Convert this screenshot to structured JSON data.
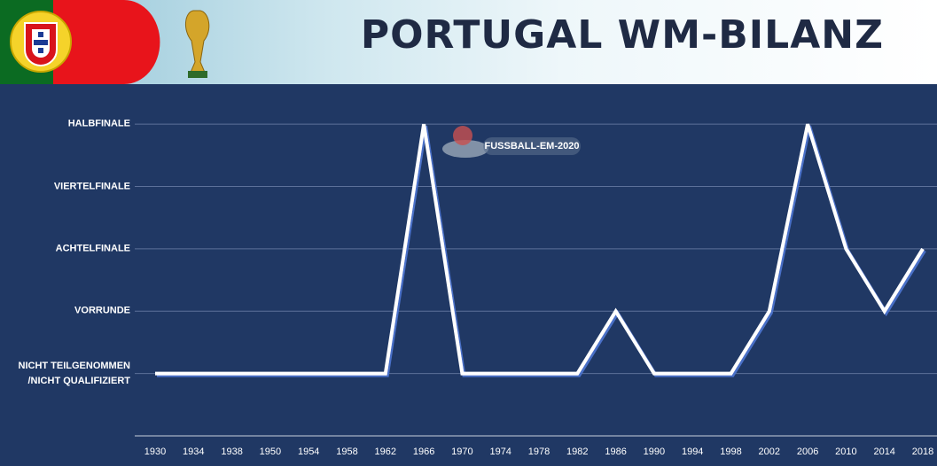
{
  "chart_data": {
    "type": "line",
    "title": "PORTUGAL WM-BILANZ",
    "watermark": "FUSSBALL-EM-2020",
    "categories": [
      "1930",
      "1934",
      "1938",
      "1950",
      "1954",
      "1958",
      "1962",
      "1966",
      "1970",
      "1974",
      "1978",
      "1982",
      "1986",
      "1990",
      "1994",
      "1998",
      "2002",
      "2006",
      "2010",
      "2014",
      "2018"
    ],
    "values": [
      0,
      0,
      0,
      0,
      0,
      0,
      0,
      4,
      0,
      0,
      0,
      0,
      1,
      0,
      0,
      0,
      1,
      4,
      2,
      1,
      2
    ],
    "color": "#ffffff",
    "ylim": [
      -1,
      4.5
    ],
    "yticks": [
      {
        "value": 0,
        "label": "NICHT TEILGENOMMEN /NICHT QUALIFIZIERT"
      },
      {
        "value": 1,
        "label": "VORRUNDE"
      },
      {
        "value": 2,
        "label": "ACHTELFINALE"
      },
      {
        "value": 3,
        "label": "VIERTELFINALE"
      },
      {
        "value": 4,
        "label": "HALBFINALE"
      }
    ],
    "grid": true
  }
}
